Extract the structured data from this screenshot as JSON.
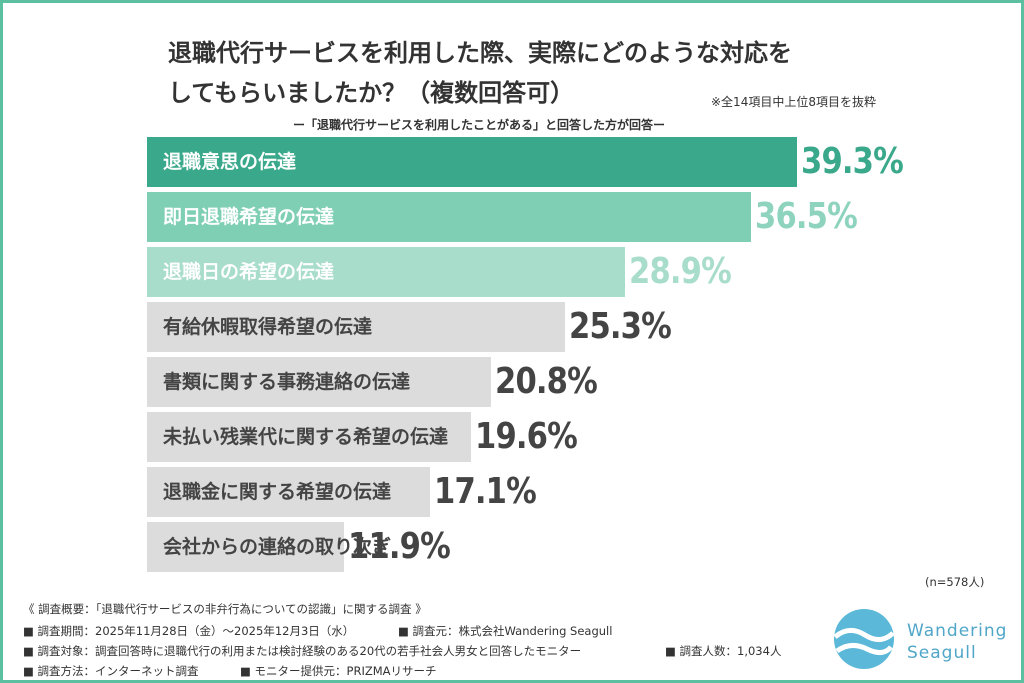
{
  "chart_data": {
    "type": "bar",
    "title": [
      "退職代行サービスを利用した際、実際にどのような対応を",
      "してもらいましたか？（複数回答可）"
    ],
    "note": "※全14項目中上位8項目を抜粋",
    "subtitle": "ー「退職代行サービスを利用したことがある」と回答した方が回答ー",
    "categories": [
      "退職意思の伝達",
      "即日退職希望の伝達",
      "退職日の希望の伝達",
      "有給休暇取得希望の伝達",
      "書類に関する事務連絡の伝達",
      "未払い残業代に関する希望の伝達",
      "退職金に関する希望の伝達",
      "会社からの連絡の取り次ぎ"
    ],
    "values": [
      39.3,
      36.5,
      28.9,
      25.3,
      20.8,
      19.6,
      17.1,
      11.9
    ],
    "value_labels": [
      "39.3%",
      "36.5%",
      "28.9%",
      "25.3%",
      "20.8%",
      "19.6%",
      "17.1%",
      "11.9%"
    ],
    "colors": [
      "#3aa88a",
      "#7fcfb5",
      "#a8dccb",
      "#dcdcdc",
      "#dcdcdc",
      "#dcdcdc",
      "#dcdcdc",
      "#dcdcdc"
    ],
    "value_colors": [
      "#3aa88a",
      "#8dd3bd",
      "#a8dccb",
      "#444444",
      "#444444",
      "#444444",
      "#444444",
      "#444444"
    ],
    "label_colors": [
      "#ffffff",
      "#ffffff",
      "#ffffff",
      "#444444",
      "#444444",
      "#444444",
      "#444444",
      "#444444"
    ],
    "sample_size": "(n=578人)"
  },
  "footer": {
    "overview": "《 調査概要：「退職代行サービスの非弁行為についての認識」に関する調査 》",
    "period": "■ 調査期間：2025年11月28日（金）〜2025年12月3日（水）",
    "source": "■ 調査元：株式会社Wandering Seagull",
    "target": "■ 調査対象：調査回答時に退職代行の利用または検討経験のある20代の若手社会人男女と回答したモニター",
    "count": "■ 調査人数：1,034人",
    "method": "■ 調査方法：インターネット調査",
    "provider": "■ モニター提供元：PRIZMAリサーチ",
    "logo": [
      "Wandering",
      "Seagull"
    ]
  }
}
